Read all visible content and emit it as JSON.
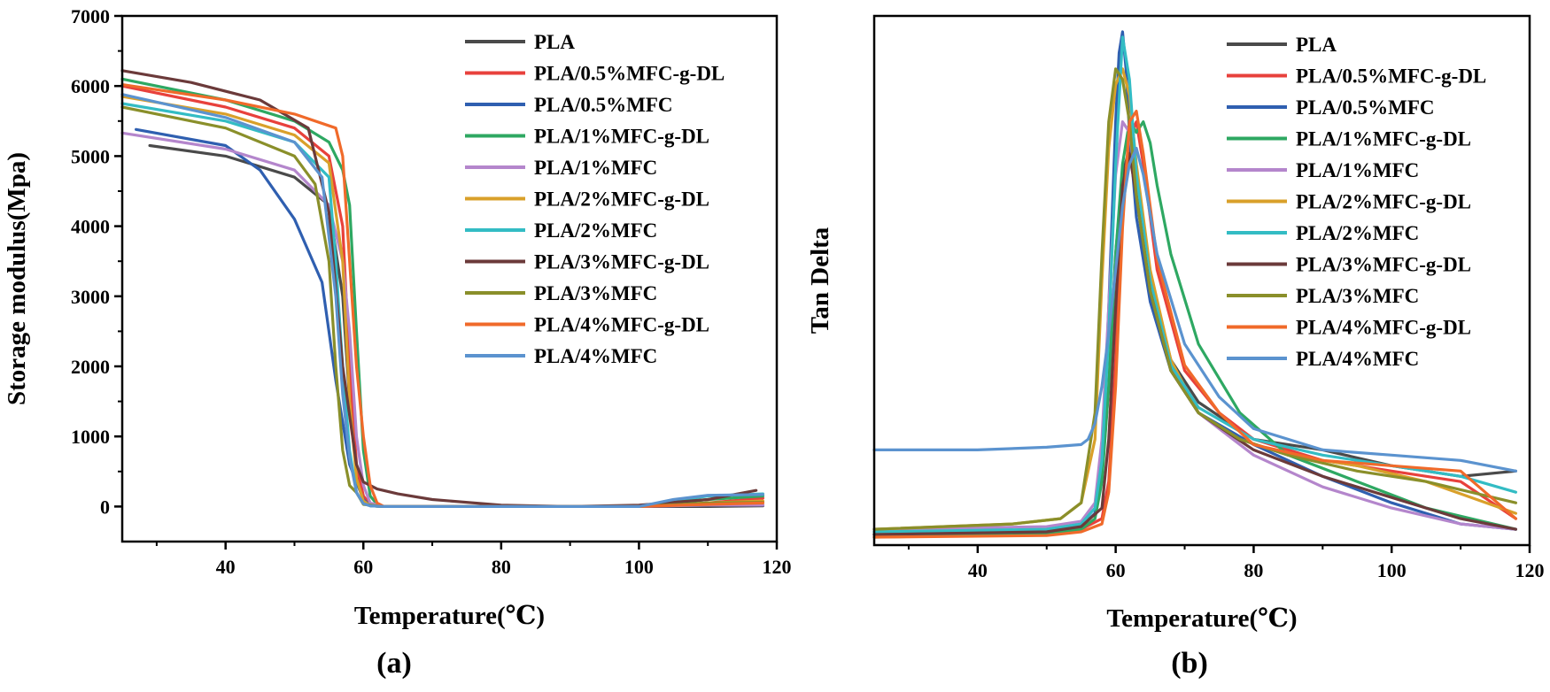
{
  "series_styles": [
    {
      "name": "PLA",
      "color": "#4a4a4a"
    },
    {
      "name": "PLA/0.5%MFC-g-DL",
      "color": "#e8413c"
    },
    {
      "name": "PLA/0.5%MFC",
      "color": "#2f5fb0"
    },
    {
      "name": "PLA/1%MFC-g-DL",
      "color": "#2ea862"
    },
    {
      "name": "PLA/1%MFC",
      "color": "#b486cc"
    },
    {
      "name": "PLA/2%MFC-g-DL",
      "color": "#d9a02a"
    },
    {
      "name": "PLA/2%MFC",
      "color": "#33bcc4"
    },
    {
      "name": "PLA/3%MFC-g-DL",
      "color": "#6b3a3a"
    },
    {
      "name": "PLA/3%MFC",
      "color": "#8a8f2a"
    },
    {
      "name": "PLA/4%MFC-g-DL",
      "color": "#f06a2a"
    },
    {
      "name": "PLA/4%MFC",
      "color": "#5b93cf"
    }
  ],
  "panel_labels": [
    "(a)",
    "(b)"
  ],
  "chart_data": [
    {
      "type": "line",
      "panel": "(a)",
      "title": "",
      "xlabel": "Temperature(℃)",
      "ylabel": "Storage modulus(Mpa)",
      "xlim": [
        25,
        120
      ],
      "ylim": [
        -500,
        7000
      ],
      "xticks": [
        40,
        60,
        80,
        100,
        120
      ],
      "yticks": [
        0,
        1000,
        2000,
        3000,
        4000,
        5000,
        6000,
        7000
      ],
      "legend_position": "top-right",
      "series": [
        {
          "name": "PLA",
          "x": [
            29,
            40,
            50,
            55,
            57,
            58,
            59,
            60,
            61,
            63,
            70,
            80,
            90,
            100,
            110,
            118
          ],
          "y": [
            5150,
            5000,
            4700,
            4300,
            3000,
            1500,
            500,
            100,
            10,
            0,
            0,
            0,
            0,
            0,
            0,
            10
          ]
        },
        {
          "name": "PLA/0.5%MFC-g-DL",
          "x": [
            25,
            40,
            50,
            55,
            57,
            58,
            59,
            60,
            61,
            63,
            70,
            80,
            90,
            100,
            110,
            118
          ],
          "y": [
            6000,
            5700,
            5400,
            5000,
            4000,
            2000,
            600,
            150,
            30,
            0,
            0,
            0,
            0,
            0,
            50,
            120
          ]
        },
        {
          "name": "PLA/0.5%MFC",
          "x": [
            27,
            40,
            45,
            50,
            54,
            56,
            58,
            60,
            61,
            63,
            70,
            80,
            90,
            100,
            110,
            118
          ],
          "y": [
            5380,
            5150,
            4800,
            4100,
            3200,
            1800,
            600,
            100,
            10,
            0,
            0,
            0,
            0,
            0,
            20,
            20
          ]
        },
        {
          "name": "PLA/1%MFC-g-DL",
          "x": [
            25,
            40,
            50,
            55,
            57,
            58,
            59,
            60,
            61,
            62,
            63,
            70,
            80,
            90,
            100,
            110,
            118
          ],
          "y": [
            6100,
            5800,
            5500,
            5200,
            4800,
            4300,
            2500,
            800,
            150,
            30,
            0,
            0,
            0,
            0,
            0,
            100,
            150
          ]
        },
        {
          "name": "PLA/1%MFC",
          "x": [
            25,
            40,
            50,
            55,
            57,
            58,
            59,
            60,
            61,
            63,
            70,
            80,
            90,
            100,
            110,
            118
          ],
          "y": [
            5330,
            5100,
            4800,
            4300,
            3500,
            2500,
            1000,
            300,
            50,
            0,
            0,
            0,
            0,
            0,
            20,
            20
          ]
        },
        {
          "name": "PLA/2%MFC-g-DL",
          "x": [
            25,
            40,
            50,
            55,
            57,
            58,
            59,
            60,
            61,
            63,
            70,
            80,
            90,
            100,
            110,
            118
          ],
          "y": [
            5850,
            5600,
            5300,
            4900,
            3500,
            1500,
            400,
            80,
            10,
            0,
            0,
            0,
            0,
            0,
            50,
            80
          ]
        },
        {
          "name": "PLA/2%MFC",
          "x": [
            25,
            40,
            50,
            55,
            56,
            57,
            58,
            59,
            60,
            61,
            63,
            70,
            80,
            90,
            100,
            110,
            118
          ],
          "y": [
            5750,
            5500,
            5200,
            4700,
            3500,
            2000,
            800,
            200,
            40,
            10,
            0,
            0,
            0,
            0,
            0,
            150,
            180
          ]
        },
        {
          "name": "PLA/3%MFC-g-DL",
          "x": [
            25,
            35,
            45,
            52,
            55,
            57,
            59,
            60,
            61,
            62,
            65,
            70,
            80,
            90,
            100,
            110,
            117
          ],
          "y": [
            6220,
            6050,
            5800,
            5400,
            4200,
            2000,
            600,
            350,
            300,
            250,
            180,
            100,
            20,
            0,
            20,
            100,
            230
          ]
        },
        {
          "name": "PLA/3%MFC",
          "x": [
            25,
            40,
            50,
            53,
            55,
            56,
            57,
            58,
            59,
            60,
            63,
            70,
            80,
            90,
            100,
            110,
            118
          ],
          "y": [
            5700,
            5400,
            5000,
            4600,
            3500,
            2000,
            800,
            300,
            200,
            30,
            0,
            0,
            0,
            0,
            0,
            50,
            60
          ]
        },
        {
          "name": "PLA/4%MFC-g-DL",
          "x": [
            25,
            40,
            50,
            56,
            57,
            58,
            59,
            60,
            61,
            62,
            63,
            70,
            80,
            90,
            100,
            110,
            118
          ],
          "y": [
            6020,
            5800,
            5600,
            5400,
            5000,
            3500,
            2000,
            1000,
            300,
            50,
            0,
            0,
            0,
            0,
            0,
            30,
            50
          ]
        },
        {
          "name": "PLA/4%MFC",
          "x": [
            25,
            40,
            50,
            54,
            56,
            57,
            58,
            59,
            60,
            61,
            63,
            70,
            80,
            90,
            100,
            105,
            110,
            118
          ],
          "y": [
            5880,
            5550,
            5200,
            4700,
            3000,
            1600,
            700,
            200,
            40,
            10,
            0,
            0,
            0,
            0,
            0,
            100,
            160,
            170
          ]
        }
      ]
    },
    {
      "type": "line",
      "panel": "(b)",
      "title": "",
      "xlabel": "Temperature(℃)",
      "ylabel": "Tan Delta",
      "xlim": [
        25,
        120
      ],
      "ylim": [
        0,
        1
      ],
      "xticks": [
        40,
        60,
        80,
        100,
        120
      ],
      "yticks": [],
      "legend_position": "top-right",
      "series": [
        {
          "name": "PLA",
          "x": [
            25,
            50,
            55,
            57,
            58,
            59,
            60,
            61,
            62,
            63,
            65,
            68,
            72,
            80,
            90,
            100,
            110,
            118
          ],
          "y": [
            0.02,
            0.025,
            0.035,
            0.06,
            0.13,
            0.3,
            0.55,
            0.7,
            0.75,
            0.7,
            0.5,
            0.35,
            0.27,
            0.2,
            0.18,
            0.15,
            0.13,
            0.14
          ]
        },
        {
          "name": "PLA/0.5%MFC-g-DL",
          "x": [
            25,
            50,
            55,
            58,
            59,
            60,
            61,
            62,
            63,
            64,
            66,
            70,
            75,
            80,
            90,
            100,
            110,
            118
          ],
          "y": [
            0.02,
            0.025,
            0.03,
            0.05,
            0.12,
            0.35,
            0.65,
            0.77,
            0.8,
            0.72,
            0.52,
            0.33,
            0.25,
            0.2,
            0.16,
            0.14,
            0.12,
            0.05
          ]
        },
        {
          "name": "PLA/0.5%MFC",
          "x": [
            25,
            50,
            55,
            57,
            58,
            59,
            60,
            60.5,
            61,
            61.5,
            62,
            63,
            65,
            68,
            72,
            80,
            90,
            100,
            110,
            118
          ],
          "y": [
            0.02,
            0.025,
            0.035,
            0.06,
            0.15,
            0.45,
            0.8,
            0.93,
            0.97,
            0.9,
            0.78,
            0.62,
            0.46,
            0.33,
            0.25,
            0.19,
            0.13,
            0.08,
            0.04,
            0.03
          ]
        },
        {
          "name": "PLA/1%MFC-g-DL",
          "x": [
            25,
            50,
            55,
            57,
            58,
            59,
            60,
            61,
            62,
            63,
            64,
            65,
            66,
            68,
            72,
            78,
            85,
            95,
            105,
            118
          ],
          "y": [
            0.015,
            0.02,
            0.03,
            0.05,
            0.12,
            0.3,
            0.55,
            0.72,
            0.8,
            0.78,
            0.8,
            0.76,
            0.68,
            0.55,
            0.38,
            0.25,
            0.17,
            0.12,
            0.07,
            0.03
          ]
        },
        {
          "name": "PLA/1%MFC",
          "x": [
            25,
            50,
            55,
            57,
            58,
            59,
            60,
            61,
            62,
            63,
            65,
            68,
            72,
            80,
            90,
            100,
            110,
            118
          ],
          "y": [
            0.03,
            0.035,
            0.045,
            0.08,
            0.2,
            0.45,
            0.7,
            0.8,
            0.78,
            0.68,
            0.5,
            0.34,
            0.25,
            0.17,
            0.11,
            0.07,
            0.04,
            0.03
          ]
        },
        {
          "name": "PLA/2%MFC-g-DL",
          "x": [
            25,
            45,
            52,
            55,
            57,
            58,
            59,
            60,
            61,
            62,
            63,
            65,
            68,
            72,
            78,
            85,
            95,
            105,
            118
          ],
          "y": [
            0.03,
            0.04,
            0.05,
            0.08,
            0.2,
            0.5,
            0.75,
            0.87,
            0.9,
            0.85,
            0.72,
            0.52,
            0.35,
            0.25,
            0.2,
            0.17,
            0.15,
            0.12,
            0.06
          ]
        },
        {
          "name": "PLA/2%MFC",
          "x": [
            25,
            50,
            55,
            57,
            58,
            59,
            60,
            61,
            62,
            63,
            65,
            68,
            72,
            80,
            90,
            100,
            110,
            118
          ],
          "y": [
            0.025,
            0.03,
            0.04,
            0.07,
            0.16,
            0.4,
            0.72,
            0.96,
            0.88,
            0.7,
            0.5,
            0.34,
            0.26,
            0.2,
            0.17,
            0.15,
            0.13,
            0.1
          ]
        },
        {
          "name": "PLA/3%MFC-g-DL",
          "x": [
            25,
            50,
            55,
            58,
            59,
            60,
            61,
            62,
            63,
            65,
            68,
            72,
            80,
            90,
            100,
            110,
            118
          ],
          "y": [
            0.02,
            0.025,
            0.035,
            0.07,
            0.2,
            0.45,
            0.68,
            0.74,
            0.66,
            0.48,
            0.33,
            0.25,
            0.18,
            0.13,
            0.09,
            0.05,
            0.03
          ]
        },
        {
          "name": "PLA/3%MFC",
          "x": [
            25,
            45,
            52,
            55,
            57,
            58,
            59,
            60,
            61,
            62,
            63,
            65,
            68,
            72,
            78,
            85,
            95,
            105,
            118
          ],
          "y": [
            0.03,
            0.04,
            0.05,
            0.08,
            0.25,
            0.55,
            0.8,
            0.9,
            0.88,
            0.8,
            0.66,
            0.48,
            0.33,
            0.25,
            0.2,
            0.17,
            0.14,
            0.12,
            0.08
          ]
        },
        {
          "name": "PLA/4%MFC-g-DL",
          "x": [
            25,
            50,
            55,
            58,
            59,
            60,
            61,
            62,
            63,
            64,
            66,
            70,
            75,
            80,
            90,
            100,
            110,
            118
          ],
          "y": [
            0.015,
            0.018,
            0.025,
            0.04,
            0.1,
            0.3,
            0.6,
            0.8,
            0.82,
            0.74,
            0.54,
            0.34,
            0.25,
            0.19,
            0.16,
            0.15,
            0.14,
            0.05
          ]
        },
        {
          "name": "PLA/4%MFC",
          "x": [
            25,
            40,
            50,
            55,
            56,
            57,
            58,
            59,
            60,
            61,
            62,
            63,
            64,
            66,
            70,
            75,
            80,
            90,
            100,
            110,
            118
          ],
          "y": [
            0.18,
            0.18,
            0.185,
            0.19,
            0.2,
            0.23,
            0.3,
            0.4,
            0.52,
            0.64,
            0.72,
            0.75,
            0.7,
            0.55,
            0.38,
            0.28,
            0.22,
            0.18,
            0.17,
            0.16,
            0.14
          ]
        }
      ]
    }
  ]
}
